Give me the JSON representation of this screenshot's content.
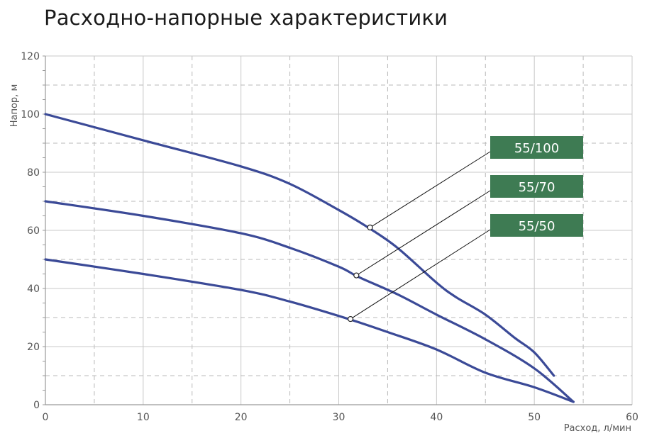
{
  "title": "Расходно-напорные характеристики",
  "chart_data": {
    "type": "line",
    "xlabel": "Расход, л/мин",
    "ylabel": "Напор, м",
    "xlim": [
      0,
      60
    ],
    "ylim": [
      0,
      120
    ],
    "x_ticks": [
      "0",
      "10",
      "20",
      "30",
      "40",
      "50",
      "60"
    ],
    "y_ticks": [
      "0",
      "20",
      "40",
      "60",
      "80",
      "100",
      "120"
    ],
    "grid": true,
    "line_color": "#3b4a97",
    "label_bg_color": "#3e7b53",
    "series": [
      {
        "name": "55/100",
        "points": [
          [
            0,
            100
          ],
          [
            10,
            91
          ],
          [
            20,
            82
          ],
          [
            25,
            76
          ],
          [
            30,
            67
          ],
          [
            33,
            61
          ],
          [
            36,
            54
          ],
          [
            40,
            42
          ],
          [
            42,
            37
          ],
          [
            45,
            31
          ],
          [
            48,
            23
          ],
          [
            50,
            18
          ],
          [
            52,
            10
          ]
        ],
        "marker": [
          33.2,
          61
        ]
      },
      {
        "name": "55/70",
        "points": [
          [
            0,
            70
          ],
          [
            10,
            65
          ],
          [
            20,
            59
          ],
          [
            25,
            54
          ],
          [
            30,
            47.5
          ],
          [
            32,
            44
          ],
          [
            36,
            38
          ],
          [
            40,
            31
          ],
          [
            45,
            22.5
          ],
          [
            50,
            12.5
          ],
          [
            54,
            1
          ]
        ],
        "marker": [
          31.8,
          44.5
        ]
      },
      {
        "name": "55/50",
        "points": [
          [
            0,
            50
          ],
          [
            10,
            45
          ],
          [
            20,
            39.5
          ],
          [
            25,
            35.5
          ],
          [
            31,
            29.5
          ],
          [
            35,
            25
          ],
          [
            40,
            19
          ],
          [
            45,
            11
          ],
          [
            50,
            6
          ],
          [
            54,
            1
          ]
        ],
        "marker": [
          31.2,
          29.5
        ]
      }
    ]
  }
}
